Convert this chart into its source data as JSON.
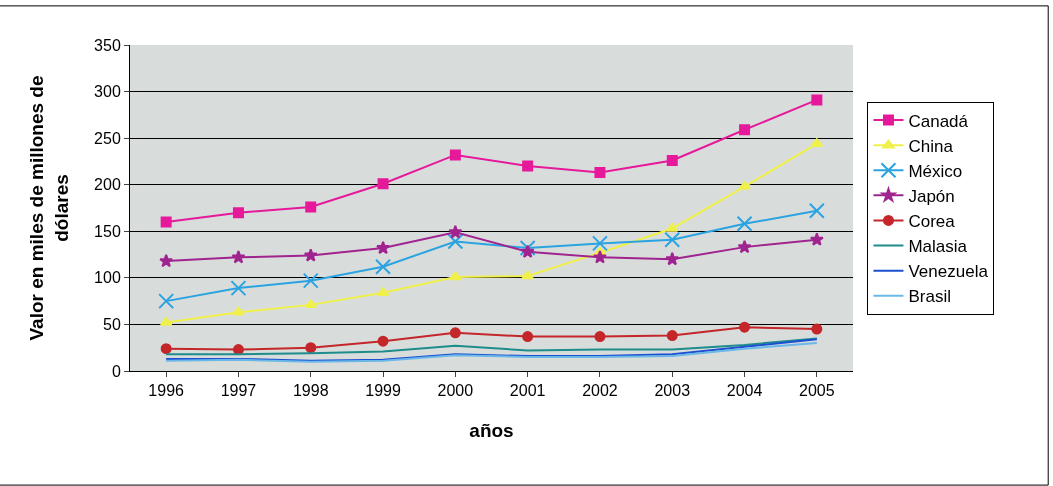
{
  "chart_data": {
    "type": "line",
    "xlabel": "años",
    "ylabel": "Valor en miles de millones de dólares",
    "categories": [
      "1996",
      "1997",
      "1998",
      "1999",
      "2000",
      "2001",
      "2002",
      "2003",
      "2004",
      "2005"
    ],
    "ylim": [
      0,
      350
    ],
    "yticks": [
      0,
      50,
      100,
      150,
      200,
      250,
      300,
      350
    ],
    "grid": "y",
    "legend": "right",
    "series": [
      {
        "name": "Canadá",
        "color": "#e6199b",
        "marker": "square",
        "values": [
          160,
          170,
          176,
          201,
          232,
          220,
          213,
          226,
          259,
          291
        ]
      },
      {
        "name": "China",
        "color": "#f0f04a",
        "marker": "triangle",
        "values": [
          52,
          63,
          71,
          84,
          101,
          102,
          127,
          153,
          198,
          244
        ]
      },
      {
        "name": "México",
        "color": "#2ba3e0",
        "marker": "cross",
        "values": [
          75,
          89,
          97,
          112,
          139,
          132,
          137,
          141,
          158,
          172
        ]
      },
      {
        "name": "Japón",
        "color": "#a0248f",
        "marker": "star",
        "values": [
          118,
          122,
          124,
          132,
          149,
          128,
          122,
          120,
          133,
          141
        ]
      },
      {
        "name": "Corea",
        "color": "#c4262a",
        "marker": "circle",
        "values": [
          24,
          23,
          25,
          32,
          41,
          37,
          37,
          38,
          47,
          45
        ]
      },
      {
        "name": "Malasia",
        "color": "#1f8c8c",
        "marker": "none",
        "values": [
          18,
          18,
          19,
          21,
          27,
          22,
          23,
          23,
          28,
          35
        ]
      },
      {
        "name": "Venezuela",
        "color": "#1c4fd1",
        "marker": "none",
        "values": [
          13,
          13,
          11,
          12,
          18,
          16,
          16,
          18,
          26,
          34
        ]
      },
      {
        "name": "Brasil",
        "color": "#6ab8e8",
        "marker": "none",
        "values": [
          11,
          12,
          10,
          11,
          17,
          15,
          15,
          16,
          24,
          30
        ]
      }
    ]
  }
}
